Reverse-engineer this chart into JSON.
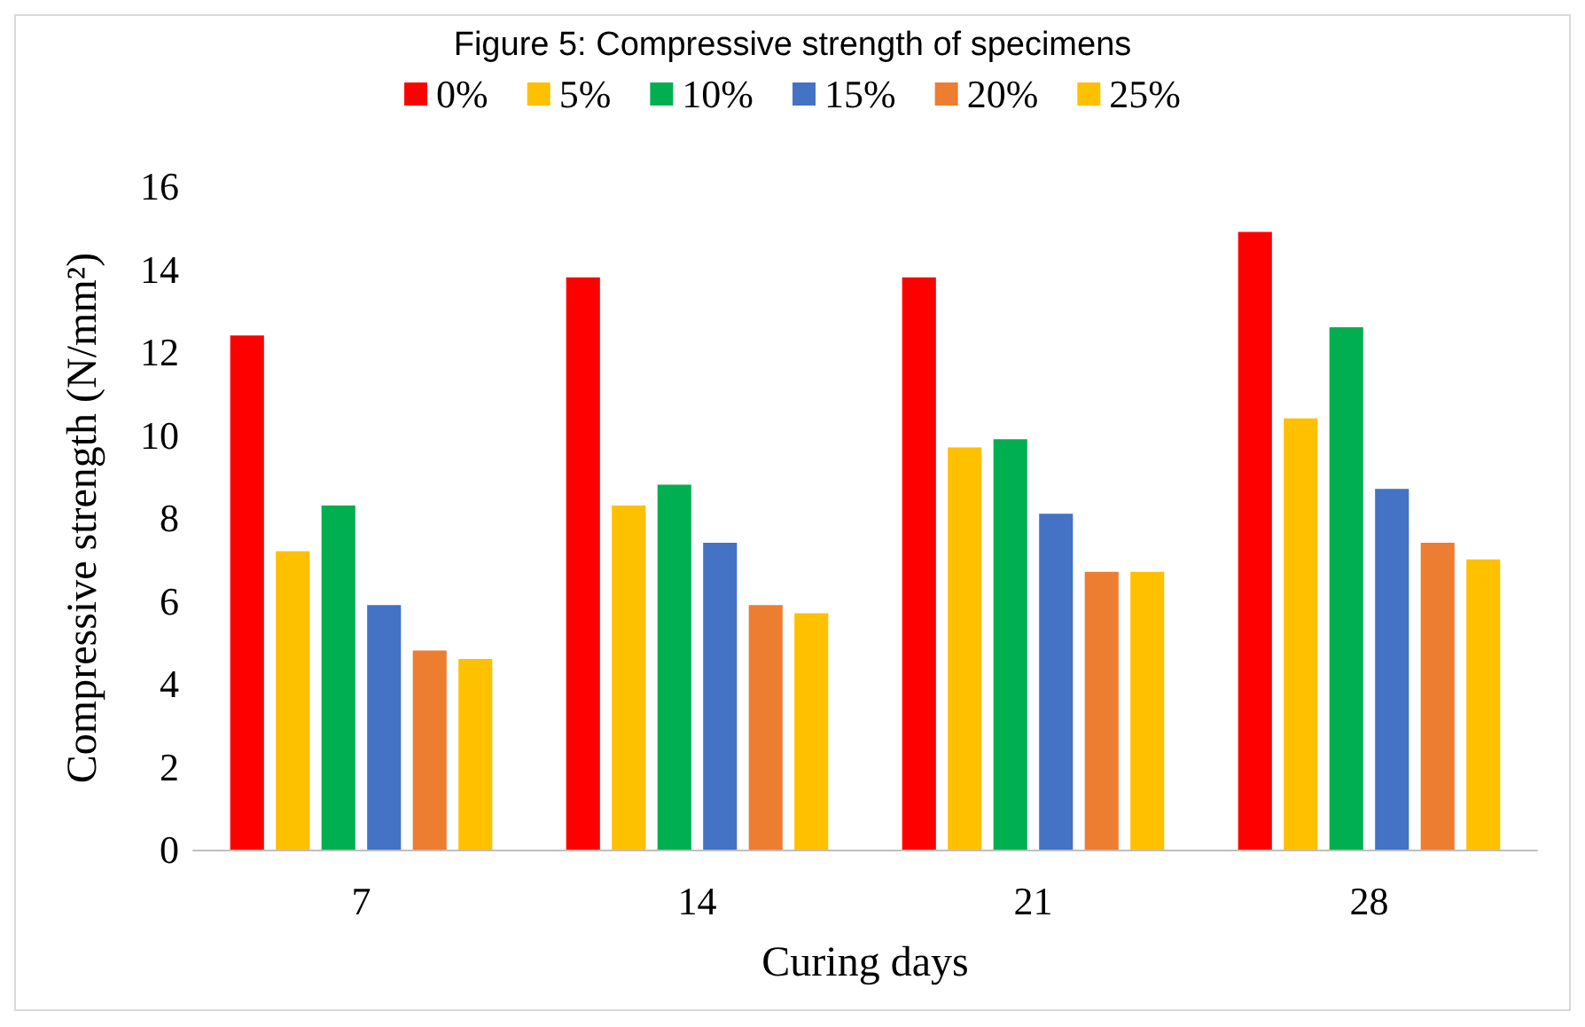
{
  "chart_data": {
    "type": "bar",
    "title": "Figure 5: Compressive strength of specimens",
    "xlabel": "Curing days",
    "ylabel": "Compressive strength (N/mm²)",
    "categories": [
      "7",
      "14",
      "21",
      "28"
    ],
    "series": [
      {
        "name": "0%",
        "color": "#ff0000",
        "values": [
          12.4,
          13.8,
          13.8,
          14.9
        ]
      },
      {
        "name": "5%",
        "color": "#ffc000",
        "values": [
          7.2,
          8.3,
          9.7,
          10.4
        ]
      },
      {
        "name": "10%",
        "color": "#00b050",
        "values": [
          8.3,
          8.8,
          9.9,
          12.6
        ]
      },
      {
        "name": "15%",
        "color": "#4472c4",
        "values": [
          5.9,
          7.4,
          8.1,
          8.7
        ]
      },
      {
        "name": "20%",
        "color": "#ed7d31",
        "values": [
          4.8,
          5.9,
          6.7,
          7.4
        ]
      },
      {
        "name": "25%",
        "color": "#ffc000",
        "values": [
          4.6,
          5.7,
          6.7,
          7.0
        ]
      }
    ],
    "ylim": [
      0,
      16
    ],
    "yticks": [
      0,
      2,
      4,
      6,
      8,
      10,
      12,
      14,
      16
    ],
    "grid": false,
    "legend": "top"
  }
}
